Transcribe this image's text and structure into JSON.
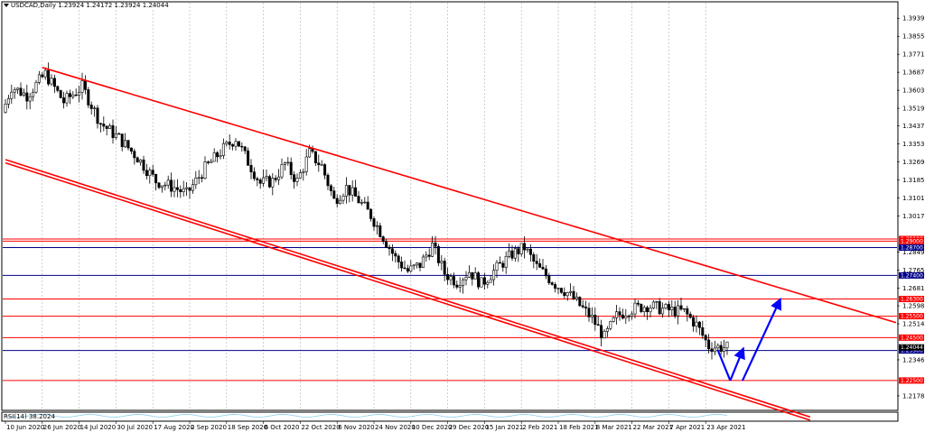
{
  "header": {
    "symbol": "USDCAD,Daily",
    "ohlc": "1.23924 1.24172 1.23924 1.24044"
  },
  "indicator": {
    "label": "RSI(14) 38.2024"
  },
  "colors": {
    "bull": "#ffffff",
    "bear": "#000000",
    "grid": "#b0b0b0",
    "channel": "#ff0000",
    "support": "#ff0000",
    "resistance_blue": "#00008b",
    "arrow": "#0000ff",
    "rsi_line": "#87ceeb"
  },
  "chart_data": {
    "type": "candlestick",
    "ylim": [
      1.2115,
      1.4012
    ],
    "price_ticks": [
      "1.39395",
      "1.38555",
      "1.37715",
      "1.36875",
      "1.36035",
      "1.35195",
      "1.34370",
      "1.33530",
      "1.32690",
      "1.31850",
      "1.31010",
      "1.30170",
      "1.28490",
      "1.27650",
      "1.26810",
      "1.25985",
      "1.25145",
      "1.23465",
      "1.21785"
    ],
    "date_labels": [
      "10 Jun 2020",
      "26 Jun 2020",
      "14 Jul 2020",
      "30 Jul 2020",
      "17 Aug 2020",
      "2 Sep 2020",
      "18 Sep 2020",
      "6 Oct 2020",
      "22 Oct 2020",
      "6 Nov 2020",
      "24 Nov 2020",
      "10 Dec 2020",
      "29 Dec 2020",
      "15 Jan 2021",
      "2 Feb 2021",
      "18 Feb 2021",
      "8 Mar 2021",
      "22 Mar 2021",
      "7 Apr 2021",
      "23 Apr 2021"
    ],
    "date_index": [
      0,
      12,
      24,
      36,
      48,
      60,
      72,
      84,
      96,
      108,
      120,
      132,
      144,
      156,
      168,
      180,
      192,
      204,
      216,
      228
    ],
    "num_bars": 236,
    "price_path": [
      [
        0,
        1.35
      ],
      [
        3,
        1.362
      ],
      [
        8,
        1.358
      ],
      [
        14,
        1.368
      ],
      [
        20,
        1.355
      ],
      [
        26,
        1.362
      ],
      [
        32,
        1.345
      ],
      [
        38,
        1.338
      ],
      [
        44,
        1.329
      ],
      [
        50,
        1.318
      ],
      [
        56,
        1.315
      ],
      [
        60,
        1.312
      ],
      [
        66,
        1.324
      ],
      [
        72,
        1.333
      ],
      [
        76,
        1.338
      ],
      [
        80,
        1.327
      ],
      [
        84,
        1.317
      ],
      [
        88,
        1.318
      ],
      [
        92,
        1.326
      ],
      [
        96,
        1.318
      ],
      [
        100,
        1.331
      ],
      [
        104,
        1.325
      ],
      [
        108,
        1.309
      ],
      [
        112,
        1.315
      ],
      [
        116,
        1.309
      ],
      [
        120,
        1.302
      ],
      [
        124,
        1.292
      ],
      [
        128,
        1.282
      ],
      [
        132,
        1.276
      ],
      [
        136,
        1.279
      ],
      [
        140,
        1.288
      ],
      [
        144,
        1.275
      ],
      [
        148,
        1.271
      ],
      [
        152,
        1.276
      ],
      [
        156,
        1.27
      ],
      [
        160,
        1.276
      ],
      [
        166,
        1.284
      ],
      [
        170,
        1.287
      ],
      [
        174,
        1.278
      ],
      [
        180,
        1.27
      ],
      [
        184,
        1.266
      ],
      [
        188,
        1.26
      ],
      [
        192,
        1.254
      ],
      [
        196,
        1.245
      ],
      [
        200,
        1.255
      ],
      [
        204,
        1.258
      ],
      [
        210,
        1.26
      ],
      [
        216,
        1.258
      ],
      [
        222,
        1.257
      ],
      [
        226,
        1.251
      ],
      [
        230,
        1.241
      ],
      [
        235,
        1.2404
      ]
    ],
    "horizontal_levels": [
      {
        "price": 1.291,
        "label": "1.29100",
        "color": "#ff0000"
      },
      {
        "price": 1.29,
        "label": "1.29000",
        "color": "#ff0000"
      },
      {
        "price": 1.287,
        "label": "1.28700",
        "color": "#00008b"
      },
      {
        "price": 1.274,
        "label": "1.27400",
        "color": "#00008b"
      },
      {
        "price": 1.263,
        "label": "1.26300",
        "color": "#ff0000"
      },
      {
        "price": 1.255,
        "label": "1.25500",
        "color": "#ff0000"
      },
      {
        "price": 1.245,
        "label": "1.24500",
        "color": "#ff0000"
      },
      {
        "price": 1.239,
        "label": "1.23900",
        "color": "#00008b"
      },
      {
        "price": 1.225,
        "label": "1.22500",
        "color": "#ff0000"
      }
    ],
    "price_tag_current": {
      "price": 1.24044,
      "label": "1.24044"
    },
    "channel_lines": [
      {
        "p1": [
          12,
          1.371
        ],
        "p2": [
          290,
          1.252
        ]
      },
      {
        "p1": [
          0,
          1.328
        ],
        "p2": [
          262,
          1.208
        ]
      },
      {
        "p1": [
          0,
          1.3265
        ],
        "p2": [
          262,
          1.2065
        ]
      }
    ],
    "forecast_arrows": [
      {
        "from": [
          232,
          1.239
        ],
        "to": [
          236,
          1.225
        ]
      },
      {
        "from": [
          236,
          1.225
        ],
        "to": [
          240,
          1.239
        ]
      },
      {
        "from": [
          240,
          1.225
        ],
        "to": [
          252,
          1.262
        ]
      }
    ],
    "xlabel": "",
    "ylabel": ""
  }
}
